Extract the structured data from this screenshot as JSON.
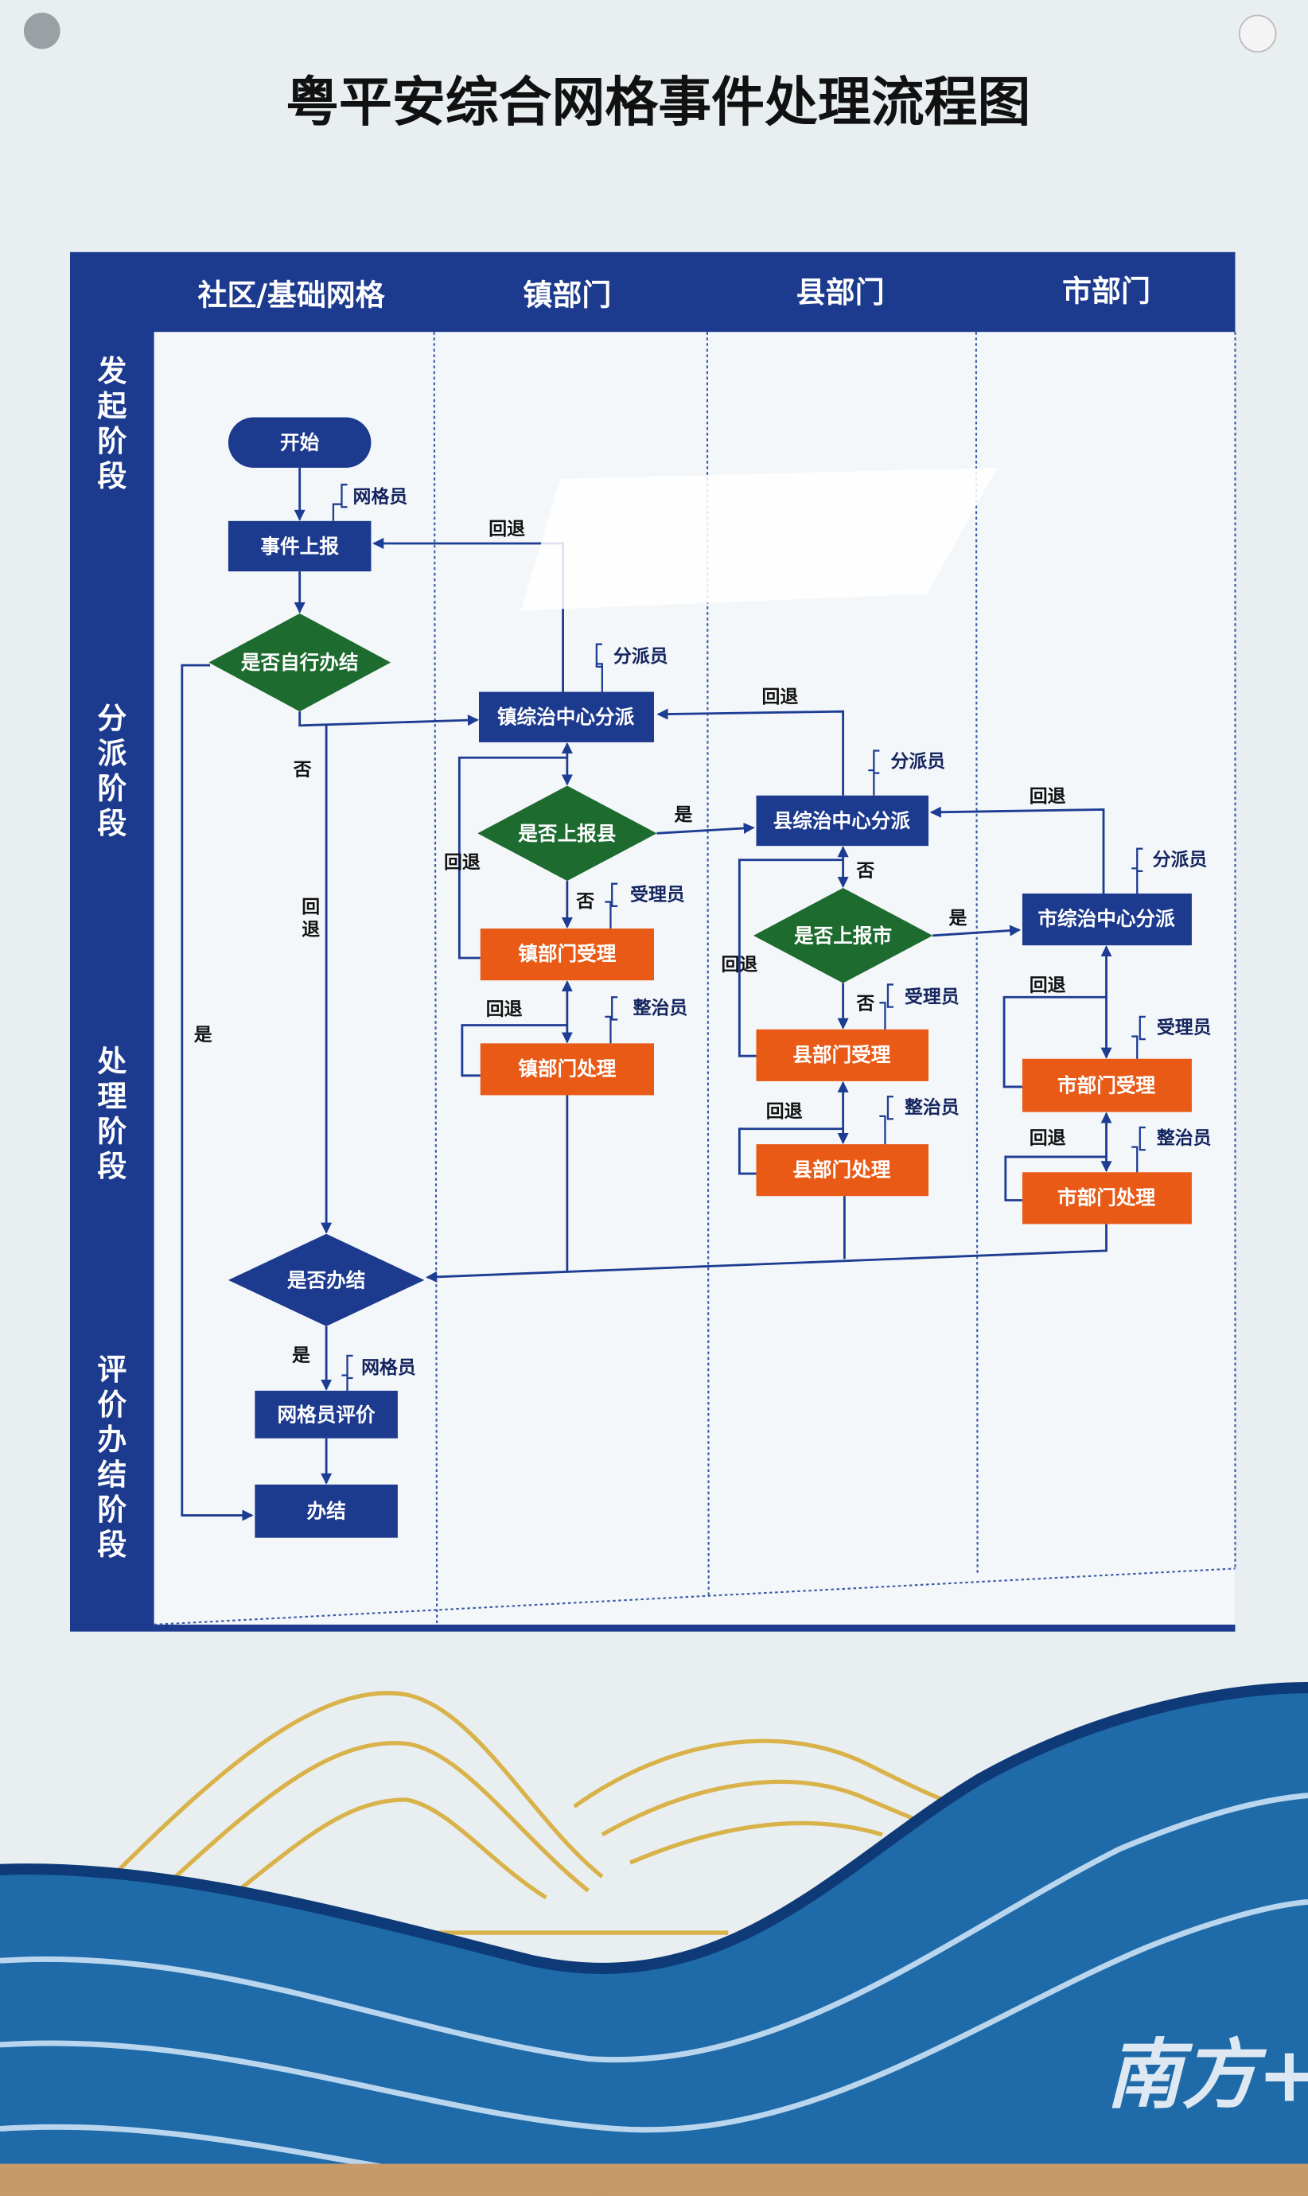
{
  "title": "粤平安综合网格事件处理流程图",
  "lanes": [
    "社区/基础网格",
    "镇部门",
    "县部门",
    "市部门"
  ],
  "phases": [
    {
      "chars": [
        "发",
        "起",
        "阶",
        "段"
      ]
    },
    {
      "chars": [
        "分",
        "派",
        "阶",
        "段"
      ]
    },
    {
      "chars": [
        "处",
        "理",
        "阶",
        "段"
      ]
    },
    {
      "chars": [
        "评",
        "价",
        "办",
        "结",
        "阶",
        "段"
      ]
    }
  ],
  "nodes": {
    "start": "开始",
    "report": "事件上报",
    "self_resolve": "是否自行办结",
    "town_dispatch": "镇综治中心分派",
    "report_county": "是否上报县",
    "town_accept": "镇部门受理",
    "town_handle": "镇部门处理",
    "county_dispatch": "县综治中心分派",
    "report_city": "是否上报市",
    "county_accept": "县部门受理",
    "county_handle": "县部门处理",
    "city_dispatch": "市综治中心分派",
    "city_accept": "市部门受理",
    "city_handle": "市部门处理",
    "resolved": "是否办结",
    "evaluate": "网格员评价",
    "close": "办结"
  },
  "roles": {
    "gridman": "网格员",
    "dispatcher": "分派员",
    "acceptor": "受理员",
    "rectifier": "整治员"
  },
  "edge_labels": {
    "yes": "是",
    "no": "否",
    "return": "回退",
    "return_chars": [
      "回",
      "退"
    ]
  },
  "colors": {
    "frame_blue": "#1c3a8e",
    "decision_green": "#1d6b2f",
    "handle_orange": "#e85a16",
    "node_blue": "#1c3a8e",
    "wave_blue": "#1f6aa8",
    "gold": "#d9b24a"
  },
  "watermark": "南方+"
}
